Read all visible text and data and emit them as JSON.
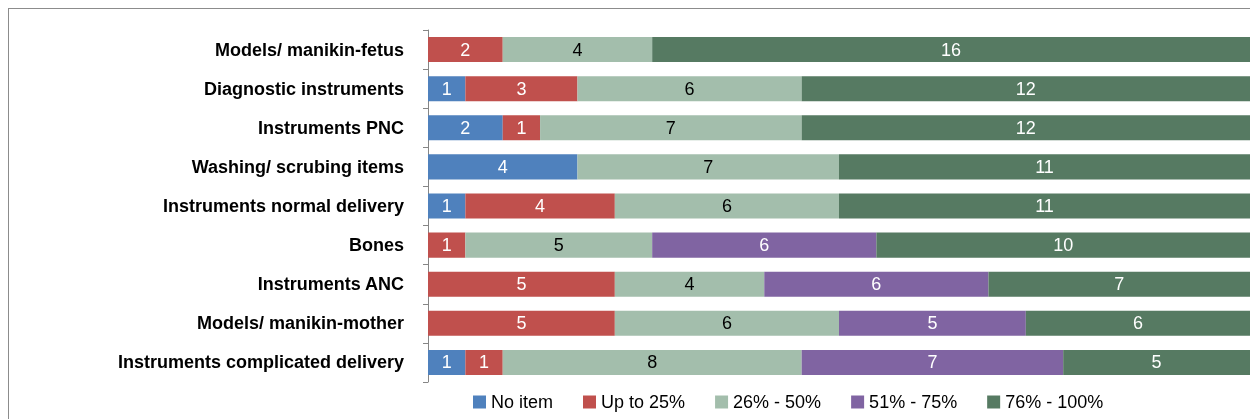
{
  "chart_data": {
    "type": "bar",
    "orientation": "horizontal",
    "stacked": true,
    "data_labels": true,
    "legend": "bottom",
    "tick_labels": "y",
    "categories": [
      "Models/ manikin-fetus",
      "Diagnostic instruments",
      "Instruments PNC",
      "Washing/ scrubing items",
      "Instruments normal delivery",
      "Bones",
      "Instruments ANC",
      "Models/ manikin-mother",
      "Instruments complicated delivery"
    ],
    "series": [
      {
        "name": "No item",
        "color": "#4f81bd",
        "values": [
          null,
          1,
          2,
          4,
          1,
          null,
          null,
          null,
          1
        ]
      },
      {
        "name": "Up to 25%",
        "color": "#c0504d",
        "values": [
          2,
          3,
          1,
          null,
          4,
          1,
          5,
          5,
          1
        ]
      },
      {
        "name": "26% - 50%",
        "color": "#a3beac",
        "values": [
          4,
          6,
          7,
          7,
          6,
          5,
          4,
          6,
          8
        ]
      },
      {
        "name": "51% - 75%",
        "color": "#8064a2",
        "values": [
          null,
          null,
          null,
          null,
          null,
          6,
          6,
          5,
          7
        ]
      },
      {
        "name": "76% - 100%",
        "color": "#567a62",
        "values": [
          16,
          12,
          12,
          11,
          11,
          10,
          7,
          6,
          5
        ]
      }
    ]
  }
}
